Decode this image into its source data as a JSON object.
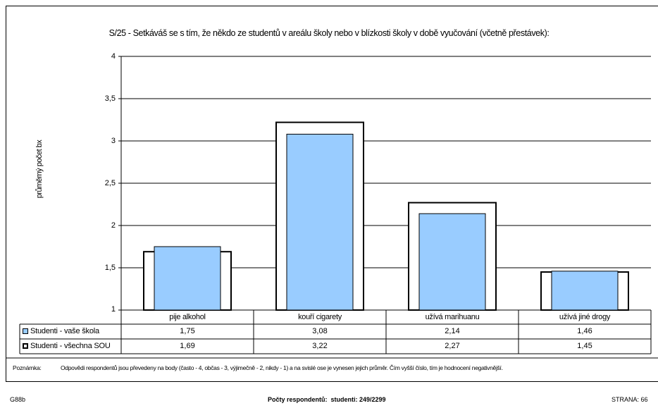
{
  "chart_data": {
    "type": "bar",
    "title": "S/25 - Setkáváš se s tím, že někdo ze studentů v areálu školy nebo v blízkosti školy v době vyučování (včetně přestávek):",
    "ylabel": "průměrný počet bx",
    "ylim": [
      1,
      4
    ],
    "yticks": [
      "1",
      "1,5",
      "2",
      "2,5",
      "3",
      "3,5",
      "4"
    ],
    "grid": true,
    "categories": [
      "pije alkohol",
      "kouří cigarety",
      "užívá marihuanu",
      "užívá jiné drogy"
    ],
    "series": [
      {
        "name": "Studenti - vaše škola",
        "values": [
          1.75,
          3.08,
          2.14,
          1.46
        ],
        "labels": [
          "1,75",
          "3,08",
          "2,14",
          "1,46"
        ],
        "color": "#99ccff"
      },
      {
        "name": "Studenti - všechna SOU",
        "values": [
          1.69,
          3.22,
          2.27,
          1.45
        ],
        "labels": [
          "1,69",
          "3,22",
          "2,27",
          "1,45"
        ],
        "color": "#ffffff"
      }
    ]
  },
  "note": {
    "label": "Poznámka:",
    "text": "Odpovědi respondentů jsou převedeny na body (často - 4, občas - 3, výjimečně - 2, nikdy - 1) a na svislé ose je vynesen jejich průměr. Čím vyšší číslo, tím je hodnocení negativnější."
  },
  "footer": {
    "code": "G88b",
    "respondents_label": "Počty respondentů:",
    "respondents_value": "studenti: 249/2299",
    "page": "STRANA: 66"
  }
}
